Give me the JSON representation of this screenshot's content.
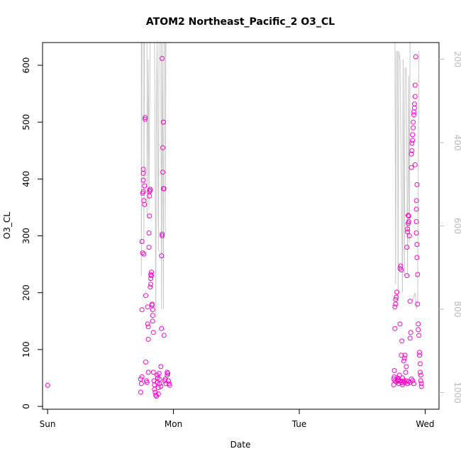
{
  "colors": {
    "points": "#ff00cc",
    "profile_line": "#c8c8c8",
    "axis": "#000000",
    "right_axis": "#bbbbbb"
  },
  "chart_data": {
    "type": "scatter",
    "title": "ATOM2 Northeast_Pacific_2 O3_CL",
    "xlabel": "Date",
    "ylabel": "O3_CL",
    "x_unit": "days",
    "xlim": [
      -0.04,
      3.11
    ],
    "ylim": [
      -5,
      640
    ],
    "x_ticks": [
      {
        "value": 0,
        "label": "Sun"
      },
      {
        "value": 1,
        "label": "Mon"
      },
      {
        "value": 2,
        "label": "Tue"
      },
      {
        "value": 3,
        "label": "Wed"
      }
    ],
    "y_ticks": [
      0,
      100,
      200,
      300,
      400,
      500,
      600
    ],
    "y2_ticks": [
      200,
      400,
      600,
      800,
      1000
    ],
    "y2_lim": [
      1040,
      160
    ],
    "grid": false,
    "series": [
      {
        "kind": "points",
        "points": [
          [
            0.0,
            37
          ],
          [
            0.74,
            25
          ],
          [
            0.74,
            48
          ],
          [
            0.745,
            40
          ],
          [
            0.75,
            52
          ],
          [
            0.75,
            170
          ],
          [
            0.75,
            290
          ],
          [
            0.755,
            270
          ],
          [
            0.755,
            375
          ],
          [
            0.76,
            378
          ],
          [
            0.76,
            398
          ],
          [
            0.76,
            410
          ],
          [
            0.76,
            417
          ],
          [
            0.765,
            268
          ],
          [
            0.765,
            362
          ],
          [
            0.77,
            355
          ],
          [
            0.77,
            388
          ],
          [
            0.775,
            508
          ],
          [
            0.775,
            505
          ],
          [
            0.78,
            195
          ],
          [
            0.78,
            78
          ],
          [
            0.785,
            45
          ],
          [
            0.79,
            42
          ],
          [
            0.795,
            175
          ],
          [
            0.795,
            145
          ],
          [
            0.8,
            140
          ],
          [
            0.8,
            118
          ],
          [
            0.8,
            60
          ],
          [
            0.805,
            305
          ],
          [
            0.805,
            280
          ],
          [
            0.81,
            335
          ],
          [
            0.81,
            370
          ],
          [
            0.81,
            378
          ],
          [
            0.815,
            380
          ],
          [
            0.815,
            382
          ],
          [
            0.815,
            210
          ],
          [
            0.82,
            215
          ],
          [
            0.82,
            225
          ],
          [
            0.82,
            232
          ],
          [
            0.825,
            236
          ],
          [
            0.825,
            230
          ],
          [
            0.83,
            180
          ],
          [
            0.83,
            178
          ],
          [
            0.835,
            170
          ],
          [
            0.835,
            160
          ],
          [
            0.835,
            150
          ],
          [
            0.84,
            130
          ],
          [
            0.84,
            60
          ],
          [
            0.845,
            45
          ],
          [
            0.85,
            38
          ],
          [
            0.85,
            30
          ],
          [
            0.855,
            25
          ],
          [
            0.86,
            20
          ],
          [
            0.865,
            18
          ],
          [
            0.87,
            55
          ],
          [
            0.87,
            42
          ],
          [
            0.875,
            50
          ],
          [
            0.88,
            33
          ],
          [
            0.88,
            22
          ],
          [
            0.885,
            58
          ],
          [
            0.89,
            48
          ],
          [
            0.89,
            40
          ],
          [
            0.9,
            35
          ],
          [
            0.9,
            70
          ],
          [
            0.905,
            137
          ],
          [
            0.905,
            265
          ],
          [
            0.91,
            303
          ],
          [
            0.91,
            300
          ],
          [
            0.91,
            612
          ],
          [
            0.915,
            455
          ],
          [
            0.915,
            412
          ],
          [
            0.92,
            500
          ],
          [
            0.92,
            500
          ],
          [
            0.92,
            383
          ],
          [
            0.925,
            383
          ],
          [
            0.925,
            125
          ],
          [
            0.93,
            45
          ],
          [
            0.935,
            48
          ],
          [
            0.94,
            40
          ],
          [
            0.95,
            55
          ],
          [
            0.95,
            60
          ],
          [
            0.955,
            58
          ],
          [
            0.96,
            45
          ],
          [
            0.965,
            40
          ],
          [
            0.97,
            37
          ],
          [
            2.75,
            38
          ],
          [
            2.75,
            48
          ],
          [
            2.755,
            52
          ],
          [
            2.755,
            63
          ],
          [
            2.76,
            137
          ],
          [
            2.76,
            175
          ],
          [
            2.765,
            180
          ],
          [
            2.765,
            188
          ],
          [
            2.77,
            192
          ],
          [
            2.775,
            201
          ],
          [
            2.78,
            50
          ],
          [
            2.785,
            45
          ],
          [
            2.79,
            40
          ],
          [
            2.795,
            55
          ],
          [
            2.8,
            145
          ],
          [
            2.8,
            243
          ],
          [
            2.805,
            247
          ],
          [
            2.81,
            240
          ],
          [
            2.81,
            90
          ],
          [
            2.815,
            115
          ],
          [
            2.82,
            50
          ],
          [
            2.825,
            42
          ],
          [
            2.83,
            80
          ],
          [
            2.835,
            85
          ],
          [
            2.84,
            90
          ],
          [
            2.845,
            60
          ],
          [
            2.85,
            70
          ],
          [
            2.855,
            230
          ],
          [
            2.855,
            280
          ],
          [
            2.86,
            307
          ],
          [
            2.86,
            312
          ],
          [
            2.865,
            322
          ],
          [
            2.865,
            336
          ],
          [
            2.87,
            335
          ],
          [
            2.87,
            325
          ],
          [
            2.875,
            300
          ],
          [
            2.88,
            185
          ],
          [
            2.88,
            120
          ],
          [
            2.885,
            130
          ],
          [
            2.89,
            420
          ],
          [
            2.89,
            444
          ],
          [
            2.895,
            450
          ],
          [
            2.895,
            463
          ],
          [
            2.9,
            468
          ],
          [
            2.9,
            478
          ],
          [
            2.905,
            490
          ],
          [
            2.905,
            500
          ],
          [
            2.91,
            513
          ],
          [
            2.91,
            518
          ],
          [
            2.915,
            525
          ],
          [
            2.915,
            532
          ],
          [
            2.92,
            545
          ],
          [
            2.92,
            565
          ],
          [
            2.925,
            615
          ],
          [
            2.93,
            325
          ],
          [
            2.93,
            305
          ],
          [
            2.935,
            285
          ],
          [
            2.935,
            262
          ],
          [
            2.94,
            232
          ],
          [
            2.94,
            180
          ],
          [
            2.945,
            145
          ],
          [
            2.945,
            135
          ],
          [
            2.95,
            125
          ],
          [
            2.955,
            95
          ],
          [
            2.955,
            90
          ],
          [
            2.96,
            75
          ],
          [
            2.96,
            60
          ],
          [
            2.965,
            55
          ],
          [
            2.965,
            45
          ],
          [
            2.97,
            40
          ],
          [
            2.97,
            35
          ],
          [
            2.93,
            347
          ],
          [
            2.93,
            362
          ],
          [
            2.935,
            390
          ],
          [
            2.92,
            425
          ],
          [
            2.84,
            42
          ],
          [
            2.85,
            45
          ],
          [
            2.86,
            40
          ],
          [
            2.87,
            44
          ],
          [
            2.88,
            42
          ],
          [
            2.79,
            48
          ],
          [
            2.8,
            45
          ],
          [
            2.81,
            42
          ],
          [
            2.82,
            38
          ],
          [
            2.83,
            45
          ],
          [
            2.76,
            45
          ],
          [
            2.77,
            43
          ],
          [
            2.78,
            46
          ],
          [
            2.89,
            48
          ],
          [
            2.9,
            45
          ],
          [
            2.91,
            40
          ]
        ]
      },
      {
        "kind": "profile",
        "axis": "right",
        "segments": [
          [
            [
              0.745,
              160
            ],
            [
              0.745,
              720
            ],
            [
              0.75,
              160
            ]
          ],
          [
            [
              0.765,
              160
            ],
            [
              0.765,
              640
            ],
            [
              0.77,
              160
            ]
          ],
          [
            [
              0.79,
              160
            ],
            [
              0.79,
              580
            ],
            [
              0.8,
              200
            ],
            [
              0.805,
              560
            ],
            [
              0.815,
              160
            ]
          ],
          [
            [
              0.85,
              160
            ],
            [
              0.86,
              820
            ],
            [
              0.865,
              300
            ],
            [
              0.87,
              160
            ],
            [
              0.88,
              660
            ],
            [
              0.885,
              160
            ]
          ],
          [
            [
              0.9,
              160
            ],
            [
              0.905,
              800
            ],
            [
              0.91,
              160
            ],
            [
              0.915,
              360
            ],
            [
              0.92,
              800
            ],
            [
              0.925,
              160
            ]
          ],
          [
            [
              0.935,
              160
            ],
            [
              0.935,
              620
            ],
            [
              0.94,
              160
            ]
          ],
          [
            [
              2.73,
              160
            ],
            [
              2.76,
              160
            ],
            [
              2.765,
              740
            ],
            [
              2.77,
              180
            ]
          ],
          [
            [
              2.78,
              180
            ],
            [
              2.785,
              770
            ],
            [
              2.79,
              180
            ],
            [
              2.8,
              200
            ],
            [
              2.82,
              760
            ],
            [
              2.825,
              200
            ],
            [
              2.835,
              720
            ],
            [
              2.84,
              220
            ]
          ],
          [
            [
              2.85,
              220
            ],
            [
              2.86,
              720
            ],
            [
              2.87,
              240
            ],
            [
              2.875,
              640
            ],
            [
              2.88,
              160
            ]
          ],
          [
            [
              2.9,
              780
            ],
            [
              2.92,
              760
            ],
            [
              2.93,
              800
            ],
            [
              2.94,
              790
            ],
            [
              2.95,
              180
            ]
          ]
        ]
      }
    ]
  }
}
